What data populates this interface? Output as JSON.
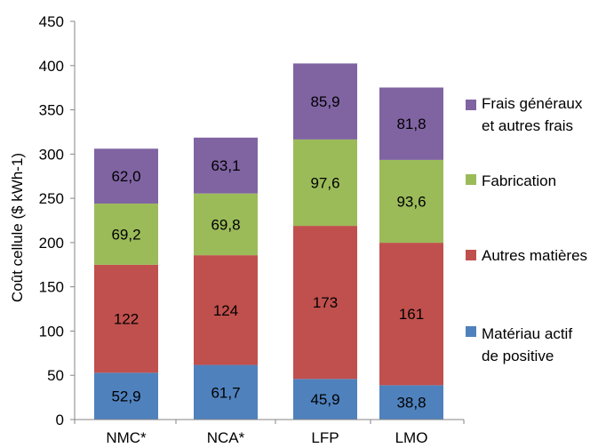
{
  "chart_data": {
    "type": "bar",
    "stacked": true,
    "title": "",
    "xlabel": "",
    "ylabel": "Coût cellule ($ kWh-1)",
    "ylim": [
      0,
      450
    ],
    "yticks": [
      0,
      50,
      100,
      150,
      200,
      250,
      300,
      350,
      400,
      450
    ],
    "grid": false,
    "legend_position": "right",
    "categories": [
      "NMC*",
      "NCA*",
      "LFP",
      "LMO"
    ],
    "series": [
      {
        "name": "Matériau actif de positive",
        "legend_lines": [
          "Matériau actif",
          "de positive"
        ],
        "color": "#4f81bd",
        "values": [
          52.9,
          61.7,
          45.9,
          38.8
        ],
        "labels": [
          "52,9",
          "61,7",
          "45,9",
          "38,8"
        ]
      },
      {
        "name": "Autres matières",
        "legend_lines": [
          "Autres matières"
        ],
        "color": "#c0504d",
        "values": [
          122,
          124,
          173,
          161
        ],
        "labels": [
          "122",
          "124",
          "173",
          "161"
        ]
      },
      {
        "name": "Fabrication",
        "legend_lines": [
          "Fabrication"
        ],
        "color": "#9bbb59",
        "values": [
          69.2,
          69.8,
          97.6,
          93.6
        ],
        "labels": [
          "69,2",
          "69,8",
          "97,6",
          "93,6"
        ]
      },
      {
        "name": "Frais généraux et autres frais",
        "legend_lines": [
          "Frais généraux",
          "et autres frais"
        ],
        "color": "#8064a2",
        "values": [
          62.0,
          63.1,
          85.9,
          81.8
        ],
        "labels": [
          "62,0",
          "63,1",
          "85,9",
          "81,8"
        ]
      }
    ]
  }
}
